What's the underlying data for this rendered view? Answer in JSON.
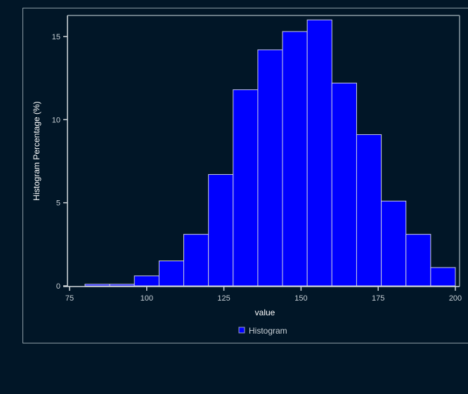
{
  "chart_data": {
    "type": "bar",
    "subtype": "histogram",
    "title": "",
    "xlabel": "value",
    "ylabel": "Histogram Percentage (%)",
    "xlim": [
      75,
      200
    ],
    "ylim": [
      0,
      16.2
    ],
    "xticks": [
      75,
      100,
      125,
      150,
      175,
      200
    ],
    "yticks": [
      0,
      5,
      10,
      15
    ],
    "grid": false,
    "legend": {
      "position": "bottom-center",
      "entries": [
        "Histogram"
      ]
    },
    "bin_width": 8,
    "bins": [
      {
        "start": 80,
        "end": 88,
        "value": 0.1
      },
      {
        "start": 88,
        "end": 96,
        "value": 0.1
      },
      {
        "start": 96,
        "end": 104,
        "value": 0.6
      },
      {
        "start": 104,
        "end": 112,
        "value": 1.5
      },
      {
        "start": 112,
        "end": 120,
        "value": 3.1
      },
      {
        "start": 120,
        "end": 128,
        "value": 6.7
      },
      {
        "start": 128,
        "end": 136,
        "value": 11.8
      },
      {
        "start": 136,
        "end": 144,
        "value": 14.2
      },
      {
        "start": 144,
        "end": 152,
        "value": 15.3
      },
      {
        "start": 152,
        "end": 160,
        "value": 16.0
      },
      {
        "start": 160,
        "end": 168,
        "value": 12.2
      },
      {
        "start": 168,
        "end": 176,
        "value": 9.1
      },
      {
        "start": 176,
        "end": 184,
        "value": 5.1
      },
      {
        "start": 184,
        "end": 192,
        "value": 3.1
      },
      {
        "start": 192,
        "end": 200,
        "value": 1.1
      }
    ],
    "series": [
      {
        "name": "Histogram",
        "color": "#0000ff"
      }
    ]
  },
  "colors": {
    "background": "#011627",
    "bar_fill": "#0000ff",
    "bar_edge": "#c8cbe0",
    "axis": "#d0d6da",
    "frame": "#8a9aa3"
  }
}
